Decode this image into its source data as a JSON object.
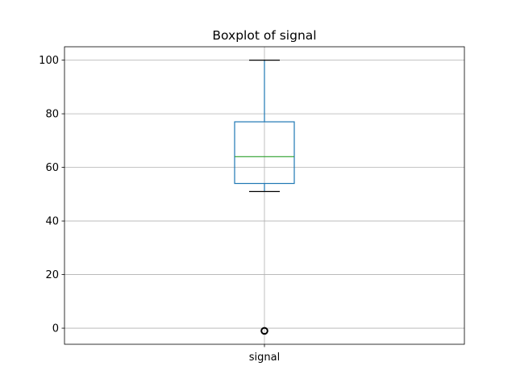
{
  "chart_data": {
    "type": "boxplot",
    "title": "Boxplot of signal",
    "xlabel": "",
    "ylabel": "",
    "categories": [
      "signal"
    ],
    "ylim": [
      -6,
      105
    ],
    "yticks": [
      0,
      20,
      40,
      60,
      80,
      100
    ],
    "grid": true,
    "boxes": [
      {
        "name": "signal",
        "whisker_low": 51,
        "q1": 54,
        "median": 64,
        "q3": 77,
        "whisker_high": 100,
        "outliers": [
          -1
        ]
      }
    ],
    "colors": {
      "box": "#1f77b4",
      "median": "#2ca02c",
      "whisker": "#1f77b4",
      "cap": "#000000",
      "flier": "#000000",
      "grid": "#b0b0b0"
    }
  }
}
